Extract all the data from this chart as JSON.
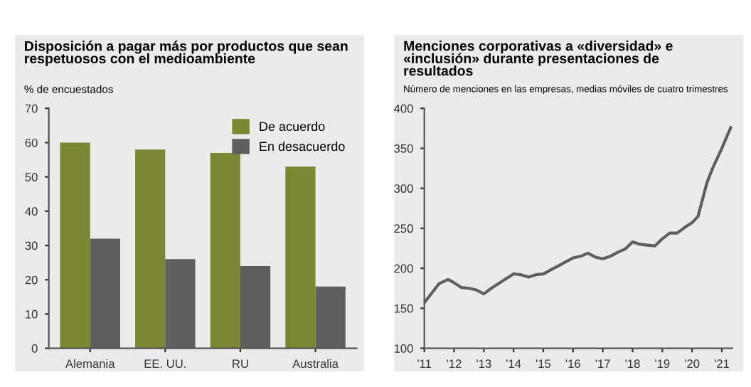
{
  "chart_data": [
    {
      "type": "bar",
      "title": "Disposición a pagar más por productos que sean respetuosos con el medioambiente",
      "ylabel": "% de encuestados",
      "categories": [
        "Alemania",
        "EE. UU.",
        "RU",
        "Australia"
      ],
      "series": [
        {
          "name": "De acuerdo",
          "color": "#7b8733",
          "values": [
            60,
            58,
            57,
            53
          ]
        },
        {
          "name": "En desacuerdo",
          "color": "#5f5f5f",
          "values": [
            32,
            26,
            24,
            18
          ]
        }
      ],
      "ylim": [
        0,
        70
      ],
      "yticks": [
        0,
        10,
        20,
        30,
        40,
        50,
        60,
        70
      ],
      "legend": "top right",
      "grid": false
    },
    {
      "type": "line",
      "title": "Menciones corporativas a «diversidad» e «inclusión» durante presentaciones de resultados",
      "subtitle": "Número de menciones en las empresas, medias móviles de cuatro trimestres",
      "series": [
        {
          "color": "#5f5f5f",
          "x": [
            2011,
            2011.5,
            2011.8,
            2012,
            2012.25,
            2012.5,
            2012.75,
            2013,
            2013.25,
            2013.5,
            2013.75,
            2014,
            2014.25,
            2014.5,
            2014.75,
            2015,
            2015.25,
            2015.5,
            2015.75,
            2016,
            2016.25,
            2016.5,
            2016.75,
            2017,
            2017.25,
            2017.5,
            2017.75,
            2018,
            2018.25,
            2018.5,
            2018.75,
            2019,
            2019.25,
            2019.5,
            2019.75,
            2020,
            2020.2,
            2020.5,
            2020.7,
            2021,
            2021.3
          ],
          "values": [
            157,
            181,
            186,
            182,
            176,
            175,
            173,
            168,
            175,
            181,
            187,
            193,
            192,
            189,
            192,
            193,
            198,
            203,
            208,
            213,
            215,
            219,
            214,
            212,
            215,
            220,
            224,
            233,
            230,
            229,
            228,
            237,
            244,
            244,
            251,
            257,
            265,
            307,
            326,
            350,
            376
          ]
        }
      ],
      "xlim": [
        2011,
        2021.35
      ],
      "xticks": [
        {
          "value": 2011,
          "label": "'11"
        },
        {
          "value": 2012,
          "label": "'12"
        },
        {
          "value": 2013,
          "label": "'13"
        },
        {
          "value": 2014,
          "label": "'14"
        },
        {
          "value": 2015,
          "label": "'15"
        },
        {
          "value": 2016,
          "label": "'16"
        },
        {
          "value": 2017,
          "label": "'17"
        },
        {
          "value": 2018,
          "label": "'18"
        },
        {
          "value": 2019,
          "label": "'19"
        },
        {
          "value": 2020,
          "label": "'20"
        },
        {
          "value": 2021,
          "label": "'21"
        }
      ],
      "ylim": [
        100,
        400
      ],
      "yticks": [
        100,
        150,
        200,
        250,
        300,
        350,
        400
      ],
      "legend": false,
      "grid": false,
      "marker": "none",
      "line_style": "solid"
    }
  ]
}
